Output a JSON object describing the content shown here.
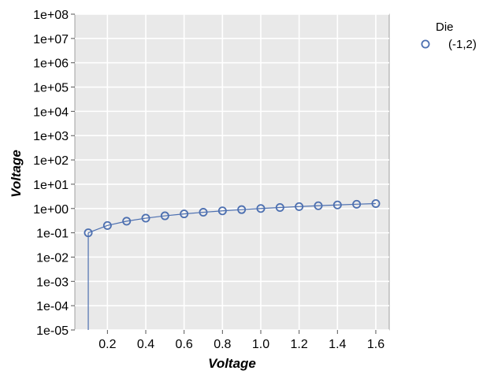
{
  "chart_data": {
    "type": "scatter",
    "xlabel": "Voltage",
    "ylabel": "Voltage",
    "yscale": "log",
    "xlim": [
      0.03,
      1.67
    ],
    "ylim": [
      1e-05,
      100000000.0
    ],
    "x_ticks": [
      "0.2",
      "0.4",
      "0.6",
      "0.8",
      "1.0",
      "1.2",
      "1.4",
      "1.6"
    ],
    "x_tick_values": [
      0.2,
      0.4,
      0.6,
      0.8,
      1.0,
      1.2,
      1.4,
      1.6
    ],
    "y_ticks": [
      "1e-05",
      "1e-04",
      "1e-03",
      "1e-02",
      "1e-01",
      "1e+00",
      "1e+01",
      "1e+02",
      "1e+03",
      "1e+04",
      "1e+05",
      "1e+06",
      "1e+07",
      "1e+08"
    ],
    "grid": true,
    "legend": {
      "title": "Die",
      "placement": "right"
    },
    "series": [
      {
        "name": "(-1,2)",
        "color": "#4c6fb0",
        "marker": "open-circle",
        "x": [
          0.1,
          0.2,
          0.3,
          0.4,
          0.5,
          0.6,
          0.7,
          0.8,
          0.9,
          1.0,
          1.1,
          1.2,
          1.3,
          1.4,
          1.5,
          1.6
        ],
        "y": [
          0.1,
          0.2,
          0.3,
          0.4,
          0.5,
          0.6,
          0.7,
          0.8,
          0.9,
          1.0,
          1.1,
          1.2,
          1.3,
          1.4,
          1.5,
          1.6
        ]
      }
    ]
  }
}
